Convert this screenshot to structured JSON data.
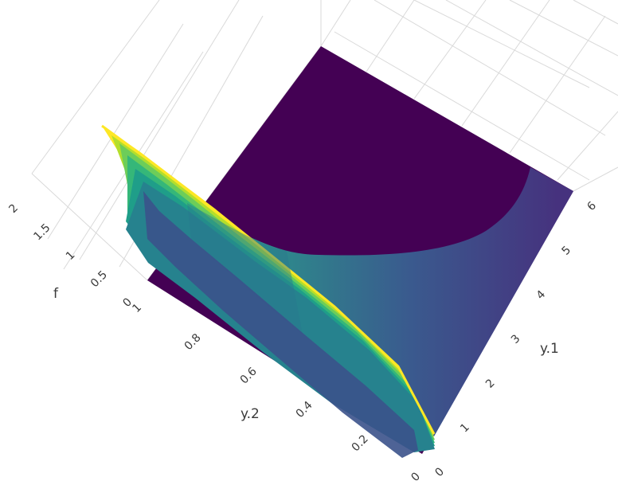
{
  "chart_data": {
    "type": "surface3d",
    "colorscale": "viridis",
    "colors": [
      "#440154",
      "#482878",
      "#3e4a89",
      "#31688e",
      "#26828e",
      "#1f9e89",
      "#35b779",
      "#6dcd59",
      "#b4de2c",
      "#fde725"
    ],
    "grid": true,
    "showscale": false,
    "x_axis": {
      "label": "y.1",
      "range": [
        0,
        6
      ],
      "ticks": [
        "0",
        "1",
        "2",
        "3",
        "4",
        "5",
        "6"
      ]
    },
    "y_axis": {
      "label": "y.2",
      "range": [
        0,
        1
      ],
      "ticks": [
        "0",
        "0.2",
        "0.4",
        "0.6",
        "0.8",
        "1"
      ]
    },
    "z_axis": {
      "label": "f",
      "range": [
        0,
        2
      ],
      "ticks": [
        "0",
        "0.5",
        "1",
        "1.5",
        "2"
      ]
    },
    "surface": {
      "description_values": "f > 0 only on region where y.2 + y.1/6 < 1 approx; peak f≈2 along ridge near y.1=0,y.2=1; f decreases toward y.1=6",
      "ridge_peak": 2.0,
      "floor": 0.0
    }
  }
}
